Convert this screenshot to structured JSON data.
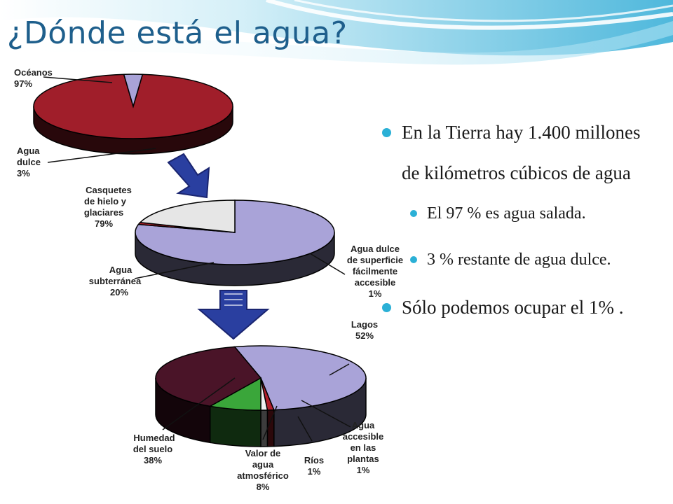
{
  "slide": {
    "title": "¿Dónde está el agua?",
    "bullets": [
      {
        "text": "En la Tierra hay 1.400 millones de kilómetros cúbicos de agua",
        "sub": [
          "El 97 % es agua salada.",
          "3 % restante de agua dulce."
        ]
      },
      {
        "text": "Sólo podemos ocupar el 1% ."
      }
    ]
  },
  "colors": {
    "title": "#1e5f8c",
    "bullet": "#2bb0d6",
    "ocean": "#a01e2a",
    "ice": "#a9a3d8",
    "groundwater": "#e6e6e6",
    "surface": "#b01e2a",
    "lakes": "#a9a3d8",
    "soil": "#4a1428",
    "atmosphere": "#3aa63a",
    "rivers": "#f0f0f0",
    "plants": "#b01e2a",
    "arrow": "#2a3fa0"
  },
  "chart_data": [
    {
      "type": "pie",
      "slices": [
        {
          "label": "Océanos",
          "value": 97
        },
        {
          "label": "Agua dulce",
          "value": 3
        }
      ],
      "labels": [
        "Océanos 97%",
        "Agua dulce 3%"
      ]
    },
    {
      "type": "pie",
      "slices": [
        {
          "label": "Casquetes de hielo y glaciares",
          "value": 79
        },
        {
          "label": "Agua subterránea",
          "value": 20
        },
        {
          "label": "Agua dulce de superficie fácilmente accesible",
          "value": 1
        }
      ],
      "labels": [
        "Casquetes de hielo y glaciares 79%",
        "Agua subterránea 20%",
        "Agua dulce de superficie fácilmente accesible 1%"
      ]
    },
    {
      "type": "pie",
      "slices": [
        {
          "label": "Lagos",
          "value": 52
        },
        {
          "label": "Agua accesible en las plantas",
          "value": 1
        },
        {
          "label": "Ríos",
          "value": 1
        },
        {
          "label": "Valor de agua atmosférico",
          "value": 8
        },
        {
          "label": "Humedad del suelo",
          "value": 38
        }
      ],
      "labels": [
        "Lagos 52%",
        "Agua accesible en las plantas 1%",
        "Ríos 1%",
        "Valor de agua atmosférico 8%",
        "Humedad del suelo 38%"
      ]
    }
  ]
}
